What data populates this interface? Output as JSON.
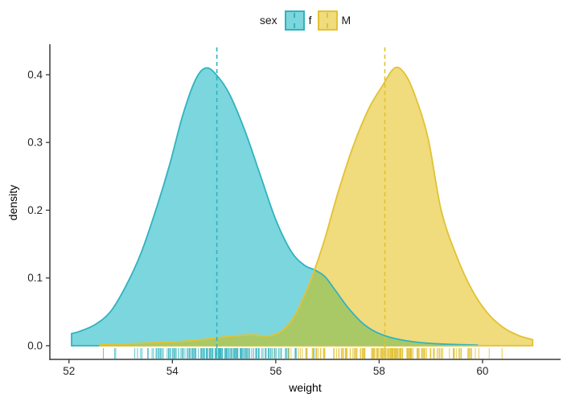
{
  "figure": {
    "background": "#ffffff"
  },
  "legend": {
    "title": "sex",
    "items": [
      {
        "label": "f",
        "fill": "#7CD6DD",
        "stroke": "#2FB3C0"
      },
      {
        "label": "M",
        "fill": "#F0DB7D",
        "stroke": "#E2C233"
      }
    ]
  },
  "chart_data": {
    "type": "area",
    "subtype": "density-comparison",
    "title": "",
    "xlabel": "weight",
    "ylabel": "density",
    "xlim": [
      51.63,
      61.51
    ],
    "ylim": [
      0,
      0.445
    ],
    "xticks": [
      52,
      54,
      56,
      58,
      60
    ],
    "yticks": [
      0,
      0.1,
      0.2,
      0.3,
      0.4
    ],
    "ytick_labels": [
      "0.0",
      "0.1",
      "0.2",
      "0.3",
      "0.4"
    ],
    "grid": false,
    "legend_position": "top-center",
    "overlap_fill": "#A9C967",
    "series": [
      {
        "name": "f",
        "fill": "#7CD6DD",
        "stroke": "#2FB3C0",
        "mean": 54.86,
        "mean_line_style": "dashed",
        "curve": [
          [
            52.05,
            0.018
          ],
          [
            52.2,
            0.021
          ],
          [
            52.5,
            0.031
          ],
          [
            52.8,
            0.05
          ],
          [
            53.1,
            0.088
          ],
          [
            53.4,
            0.138
          ],
          [
            53.7,
            0.205
          ],
          [
            53.95,
            0.268
          ],
          [
            54.2,
            0.34
          ],
          [
            54.45,
            0.393
          ],
          [
            54.65,
            0.41
          ],
          [
            54.85,
            0.4
          ],
          [
            55.1,
            0.372
          ],
          [
            55.4,
            0.318
          ],
          [
            55.7,
            0.252
          ],
          [
            56.0,
            0.186
          ],
          [
            56.3,
            0.139
          ],
          [
            56.55,
            0.119
          ],
          [
            56.75,
            0.112
          ],
          [
            56.95,
            0.102
          ],
          [
            57.15,
            0.082
          ],
          [
            57.4,
            0.056
          ],
          [
            57.7,
            0.032
          ],
          [
            58.0,
            0.018
          ],
          [
            58.4,
            0.009
          ],
          [
            58.9,
            0.004
          ],
          [
            59.4,
            0.002
          ],
          [
            59.9,
            0.001
          ]
        ]
      },
      {
        "name": "M",
        "fill": "#F0DB7D",
        "stroke": "#E2C233",
        "mean": 58.11,
        "mean_line_style": "dashed",
        "curve": [
          [
            52.6,
            0.002
          ],
          [
            53.2,
            0.003
          ],
          [
            53.8,
            0.005
          ],
          [
            54.3,
            0.007
          ],
          [
            54.8,
            0.011
          ],
          [
            55.2,
            0.0145
          ],
          [
            55.55,
            0.016
          ],
          [
            55.85,
            0.0145
          ],
          [
            56.1,
            0.021
          ],
          [
            56.35,
            0.042
          ],
          [
            56.6,
            0.082
          ],
          [
            56.75,
            0.112
          ],
          [
            56.95,
            0.158
          ],
          [
            57.2,
            0.225
          ],
          [
            57.5,
            0.295
          ],
          [
            57.8,
            0.35
          ],
          [
            58.05,
            0.382
          ],
          [
            58.3,
            0.41
          ],
          [
            58.5,
            0.401
          ],
          [
            58.7,
            0.368
          ],
          [
            58.95,
            0.305
          ],
          [
            59.2,
            0.2
          ],
          [
            59.5,
            0.132
          ],
          [
            59.8,
            0.082
          ],
          [
            60.1,
            0.048
          ],
          [
            60.4,
            0.027
          ],
          [
            60.7,
            0.015
          ],
          [
            60.97,
            0.009
          ]
        ]
      }
    ],
    "rug": {
      "f": {
        "n": 180,
        "mean": 54.9,
        "sd": 0.8,
        "min": 52.05,
        "max": 56.8,
        "seed": 7
      },
      "M": {
        "n": 180,
        "mean": 58.15,
        "sd": 0.95,
        "min": 55.9,
        "max": 60.97,
        "seed": 13
      }
    }
  },
  "axes": {
    "line_color": "#3A3A3A",
    "tick_color": "#3A3A3A",
    "tick_label_color": "#262626",
    "tick_font_size": 13.5
  }
}
